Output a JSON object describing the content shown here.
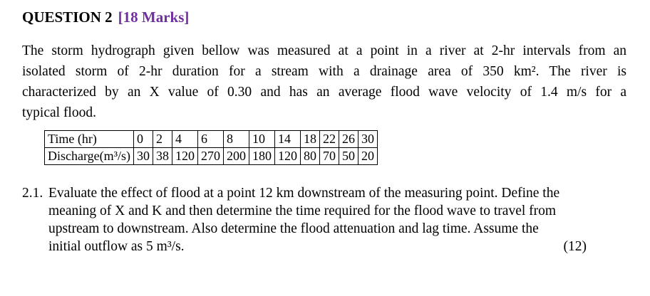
{
  "question": {
    "title": "QUESTION 2",
    "marks": "[18 Marks]"
  },
  "intro_lines": [
    "The storm hydrograph given bellow was measured at a point in a river at 2-hr intervals from an",
    "isolated storm of 2-hr duration for a stream with a drainage area of 350 km². The river is",
    "characterized by an X value of 0.30 and has an average flood wave velocity of 1.4 m/s for a",
    "typical flood."
  ],
  "table": {
    "time_header": "Time (hr)",
    "discharge_header": "Discharge(m³/s)",
    "times": [
      "0",
      "2",
      "4",
      "6",
      "8",
      "10",
      "14",
      "18",
      "22",
      "26",
      "30"
    ],
    "discharges": [
      "30",
      "38",
      "120",
      "270",
      "200",
      "180",
      "120",
      "80",
      "70",
      "50",
      "20"
    ]
  },
  "subquestion": {
    "number": "2.1.",
    "lines": [
      "Evaluate the effect of flood at a point 12 km downstream of the measuring point. Define the",
      "meaning of X and K and then determine the time required for the flood wave to travel from",
      "upstream to downstream. Also determine the flood attenuation and lag time. Assume the",
      "initial outflow as 5 m³/s."
    ],
    "score": "(12)"
  }
}
